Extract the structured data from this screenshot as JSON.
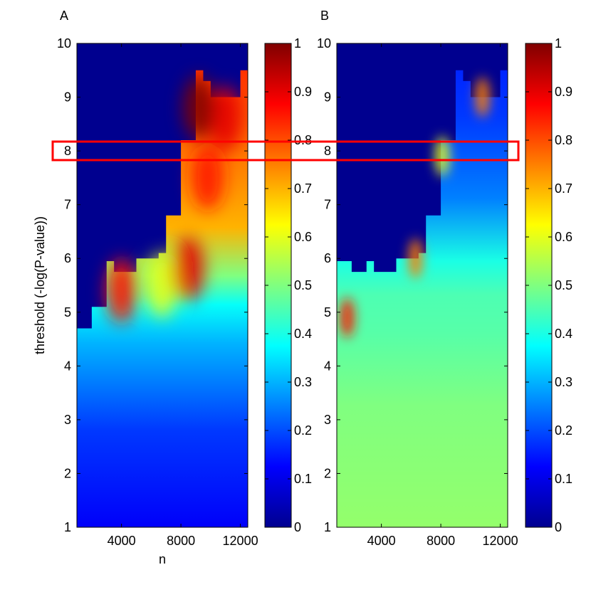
{
  "chart_data": [
    {
      "type": "heatmap",
      "panel_label": "A",
      "xlabel": "n",
      "ylabel": "threshold (-log(P-value))",
      "xlim": [
        1000,
        12500
      ],
      "ylim": [
        1,
        10
      ],
      "x_ticks": [
        4000,
        8000,
        12000
      ],
      "x_tick_labels": [
        "4000",
        "8000",
        "12000"
      ],
      "y_ticks": [
        1,
        2,
        3,
        4,
        5,
        6,
        7,
        8,
        9,
        10
      ],
      "y_tick_labels": [
        "1",
        "2",
        "3",
        "4",
        "5",
        "6",
        "7",
        "8",
        "9",
        "10"
      ],
      "colorbar": {
        "colormap": "jet",
        "range": [
          0,
          1
        ],
        "ticks": [
          0,
          0.1,
          0.2,
          0.3,
          0.4,
          0.5,
          0.6,
          0.7,
          0.8,
          0.9,
          1
        ],
        "tick_labels": [
          "0",
          "0.1",
          "0.2",
          "0.3",
          "0.4",
          "0.5",
          "0.6",
          "0.7",
          "0.8",
          "0.9",
          "1"
        ]
      },
      "boundary": [
        {
          "x": 1000,
          "y": 4.7
        },
        {
          "x": 2000,
          "y": 5.1
        },
        {
          "x": 3000,
          "y": 5.95
        },
        {
          "x": 3500,
          "y": 5.75
        },
        {
          "x": 4000,
          "y": 5.75
        },
        {
          "x": 4500,
          "y": 5.75
        },
        {
          "x": 5000,
          "y": 6.0
        },
        {
          "x": 6000,
          "y": 6.0
        },
        {
          "x": 6500,
          "y": 6.1
        },
        {
          "x": 7000,
          "y": 6.8
        },
        {
          "x": 7500,
          "y": 6.8
        },
        {
          "x": 8000,
          "y": 8.2
        },
        {
          "x": 8500,
          "y": 8.2
        },
        {
          "x": 9000,
          "y": 9.5
        },
        {
          "x": 9500,
          "y": 9.3
        },
        {
          "x": 10000,
          "y": 9.0
        },
        {
          "x": 10500,
          "y": 9.0
        },
        {
          "x": 11000,
          "y": 9.0
        },
        {
          "x": 11500,
          "y": 9.0
        },
        {
          "x": 12000,
          "y": 9.5
        },
        {
          "x": 12500,
          "y": 9.5
        }
      ],
      "hotspots": [
        {
          "x": 4000,
          "y": 5.4,
          "value": 0.85
        },
        {
          "x": 6700,
          "y": 5.5,
          "value": 0.6
        },
        {
          "x": 8500,
          "y": 5.8,
          "value": 0.9
        },
        {
          "x": 9800,
          "y": 7.5,
          "value": 0.85
        },
        {
          "x": 11000,
          "y": 8.6,
          "value": 0.9
        },
        {
          "x": 9200,
          "y": 8.8,
          "value": 1.0
        }
      ]
    },
    {
      "type": "heatmap",
      "panel_label": "B",
      "xlabel": "",
      "ylabel": "",
      "xlim": [
        1000,
        12500
      ],
      "ylim": [
        1,
        10
      ],
      "x_ticks": [
        4000,
        8000,
        12000
      ],
      "x_tick_labels": [
        "4000",
        "8000",
        "12000"
      ],
      "y_ticks": [
        1,
        2,
        3,
        4,
        5,
        6,
        7,
        8,
        9,
        10
      ],
      "y_tick_labels": [
        "1",
        "2",
        "3",
        "4",
        "5",
        "6",
        "7",
        "8",
        "9",
        "10"
      ],
      "colorbar": {
        "colormap": "jet",
        "range": [
          0,
          1
        ],
        "ticks": [
          0,
          0.1,
          0.2,
          0.3,
          0.4,
          0.5,
          0.6,
          0.7,
          0.8,
          0.9,
          1
        ],
        "tick_labels": [
          "0",
          "0.1",
          "0.2",
          "0.3",
          "0.4",
          "0.5",
          "0.6",
          "0.7",
          "0.8",
          "0.9",
          "1"
        ]
      },
      "boundary": [
        {
          "x": 1000,
          "y": 5.95
        },
        {
          "x": 2000,
          "y": 5.75
        },
        {
          "x": 3000,
          "y": 5.95
        },
        {
          "x": 3500,
          "y": 5.75
        },
        {
          "x": 4000,
          "y": 5.75
        },
        {
          "x": 4500,
          "y": 5.75
        },
        {
          "x": 5000,
          "y": 6.0
        },
        {
          "x": 6000,
          "y": 6.0
        },
        {
          "x": 6500,
          "y": 6.1
        },
        {
          "x": 7000,
          "y": 6.8
        },
        {
          "x": 7500,
          "y": 6.8
        },
        {
          "x": 8000,
          "y": 8.2
        },
        {
          "x": 8500,
          "y": 8.2
        },
        {
          "x": 9000,
          "y": 9.5
        },
        {
          "x": 9500,
          "y": 9.3
        },
        {
          "x": 10000,
          "y": 9.0
        },
        {
          "x": 10500,
          "y": 9.0
        },
        {
          "x": 11000,
          "y": 9.0
        },
        {
          "x": 11500,
          "y": 9.0
        },
        {
          "x": 12000,
          "y": 9.5
        },
        {
          "x": 12500,
          "y": 9.5
        }
      ],
      "hotspots": [
        {
          "x": 1700,
          "y": 4.9,
          "value": 0.85
        },
        {
          "x": 6300,
          "y": 6.0,
          "value": 0.75
        },
        {
          "x": 10800,
          "y": 9.0,
          "value": 0.75
        },
        {
          "x": 8100,
          "y": 7.9,
          "value": 0.6
        }
      ]
    }
  ],
  "highlight": {
    "shape": "rectangle",
    "color": "#ff0000",
    "threshold": 8,
    "spans_panels": [
      "A",
      "B"
    ]
  }
}
